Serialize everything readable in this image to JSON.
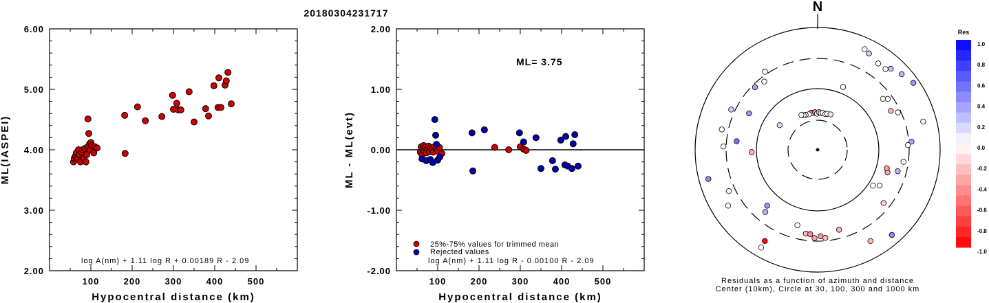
{
  "title": "20180304231717",
  "chart_data": [
    {
      "type": "scatter",
      "ylabel": "ML(IASPEI)",
      "xlabel": "Hypocentral distance (km)",
      "xlim": [
        0,
        600
      ],
      "ylim": [
        2.0,
        6.0
      ],
      "xticks": [
        "100",
        "200",
        "300",
        "400",
        "500"
      ],
      "yticks": [
        "2.00",
        "3.00",
        "4.00",
        "5.00",
        "6.00"
      ],
      "formula": "log A(nm) + 1.11 log R + 0.00189 R - 2.09",
      "series": [
        {
          "color": "#cc0000",
          "points": [
            [
              58,
              3.8
            ],
            [
              60,
              3.86
            ],
            [
              63,
              3.9
            ],
            [
              65,
              3.95
            ],
            [
              68,
              3.85
            ],
            [
              70,
              4.0
            ],
            [
              72,
              3.92
            ],
            [
              75,
              3.8
            ],
            [
              78,
              3.96
            ],
            [
              80,
              4.0
            ],
            [
              83,
              3.86
            ],
            [
              85,
              4.02
            ],
            [
              88,
              3.8
            ],
            [
              90,
              3.92
            ],
            [
              92,
              4.05
            ],
            [
              93,
              4.51
            ],
            [
              95,
              4.27
            ],
            [
              97,
              4.1
            ],
            [
              98,
              4.0
            ],
            [
              100,
              4.12
            ],
            [
              103,
              4.07
            ],
            [
              107,
              3.95
            ],
            [
              110,
              4.05
            ],
            [
              115,
              4.03
            ],
            [
              182,
              4.57
            ],
            [
              183,
              3.94
            ],
            [
              213,
              4.71
            ],
            [
              232,
              4.48
            ],
            [
              272,
              4.55
            ],
            [
              298,
              4.9
            ],
            [
              300,
              4.67
            ],
            [
              308,
              4.77
            ],
            [
              312,
              4.66
            ],
            [
              318,
              4.66
            ],
            [
              338,
              4.96
            ],
            [
              350,
              4.46
            ],
            [
              378,
              4.68
            ],
            [
              385,
              4.56
            ],
            [
              398,
              5.06
            ],
            [
              408,
              4.7
            ],
            [
              410,
              5.19
            ],
            [
              415,
              4.7
            ],
            [
              425,
              5.07
            ],
            [
              428,
              5.14
            ],
            [
              432,
              5.28
            ],
            [
              440,
              4.76
            ]
          ]
        }
      ]
    },
    {
      "type": "scatter",
      "ylabel": "ML - ML(evt)",
      "xlabel": "Hypocentral distance (km)",
      "xlim": [
        0,
        600
      ],
      "ylim": [
        -2.0,
        2.0
      ],
      "xticks": [
        "100",
        "200",
        "300",
        "400",
        "500"
      ],
      "yticks": [
        "-2.00",
        "-1.00",
        "0.00",
        "1.00",
        "2.00"
      ],
      "annotation": "ML= 3.75",
      "formula": "log A(nm) + 1.11 log R - 0.00100 R - 2.09",
      "series": [
        {
          "name": "25%-75% values for trimmed mean",
          "color": "#cc0000",
          "points": [
            [
              58,
              -0.04
            ],
            [
              60,
              0.05
            ],
            [
              62,
              -0.08
            ],
            [
              64,
              0.0
            ],
            [
              66,
              0.07
            ],
            [
              68,
              -0.02
            ],
            [
              70,
              0.04
            ],
            [
              73,
              -0.05
            ],
            [
              76,
              0.02
            ],
            [
              78,
              0.06
            ],
            [
              80,
              -0.03
            ],
            [
              83,
              0.03
            ],
            [
              86,
              0.0
            ],
            [
              89,
              -0.04
            ],
            [
              92,
              0.05
            ],
            [
              96,
              0.02
            ],
            [
              100,
              -0.02
            ],
            [
              104,
              0.04
            ],
            [
              110,
              -0.06
            ],
            [
              238,
              0.04
            ],
            [
              272,
              0.0
            ],
            [
              300,
              0.05
            ],
            [
              308,
              0.01
            ],
            [
              314,
              -0.01
            ]
          ]
        },
        {
          "name": "Rejected values",
          "color": "#0000aa",
          "points": [
            [
              62,
              -0.15
            ],
            [
              72,
              -0.18
            ],
            [
              82,
              -0.16
            ],
            [
              88,
              -0.21
            ],
            [
              93,
              0.5
            ],
            [
              95,
              0.24
            ],
            [
              97,
              0.09
            ],
            [
              100,
              -0.17
            ],
            [
              105,
              -0.12
            ],
            [
              183,
              0.28
            ],
            [
              185,
              -0.35
            ],
            [
              213,
              0.33
            ],
            [
              298,
              0.28
            ],
            [
              308,
              0.13
            ],
            [
              338,
              0.2
            ],
            [
              350,
              -0.31
            ],
            [
              378,
              -0.18
            ],
            [
              385,
              -0.32
            ],
            [
              398,
              0.16
            ],
            [
              408,
              -0.25
            ],
            [
              410,
              0.22
            ],
            [
              415,
              -0.27
            ],
            [
              425,
              -0.31
            ],
            [
              428,
              0.1
            ],
            [
              432,
              0.25
            ],
            [
              440,
              -0.27
            ]
          ]
        }
      ]
    }
  ],
  "polar": {
    "north_label": "N",
    "caption_line1": "Residuals as a function of azimuth and distance",
    "caption_line2": "Center (10km), Circle at 30, 100, 300 and 1000 km",
    "points": [
      [
        -10,
        200,
        -0.3
      ],
      [
        -7,
        196,
        -0.25
      ],
      [
        -4,
        200,
        -0.45
      ],
      [
        -1,
        192,
        0.05
      ],
      [
        2,
        200,
        -0.2
      ],
      [
        5,
        196,
        -0.1
      ],
      [
        8,
        198,
        0.0
      ],
      [
        12,
        194,
        0.05
      ],
      [
        15,
        198,
        0.0
      ],
      [
        -14,
        194,
        0.0
      ],
      [
        -19,
        196,
        0.0
      ],
      [
        -22,
        198,
        0.0
      ],
      [
        -25,
        204,
        0.0
      ],
      [
        20,
        200,
        -0.1
      ],
      [
        22,
        360,
        0.0
      ],
      [
        -34,
        500,
        0.0
      ],
      [
        -38,
        460,
        0.0
      ],
      [
        -45,
        470,
        0.35
      ],
      [
        -57,
        240,
        0.15
      ],
      [
        -62,
        412,
        0.4
      ],
      [
        -65,
        506,
        0.2
      ],
      [
        -78,
        520,
        0.0
      ],
      [
        -84,
        432,
        0.55
      ],
      [
        -88,
        500,
        0.0
      ],
      [
        -105,
        600,
        0.45
      ],
      [
        -115,
        520,
        0.0
      ],
      [
        -122,
        560,
        0.0
      ],
      [
        -138,
        400,
        0.4
      ],
      [
        -140,
        432,
        0.3
      ],
      [
        -150,
        560,
        -1.0
      ],
      [
        -165,
        415,
        0.0
      ],
      [
        -172,
        450,
        -0.3
      ],
      [
        -175,
        450,
        -0.45
      ],
      [
        -178,
        470,
        -0.35
      ],
      [
        -182,
        460,
        -0.4
      ],
      [
        -185,
        470,
        -0.25
      ],
      [
        -195,
        440,
        -0.3
      ],
      [
        -210,
        560,
        -0.3
      ],
      [
        -221,
        600,
        0.45
      ],
      [
        -231,
        450,
        -0.2
      ],
      [
        -237,
        350,
        0.0
      ],
      [
        -240,
        380,
        0.0
      ],
      [
        -255,
        440,
        0.3
      ],
      [
        -252,
        390,
        -0.35
      ],
      [
        -255,
        380,
        -0.4
      ],
      [
        -262,
        460,
        0.0
      ],
      [
        -273,
        480,
        0.0
      ],
      [
        -275,
        500,
        0.35
      ],
      [
        -285,
        580,
        0.0
      ],
      [
        -295,
        470,
        0.0
      ],
      [
        -298,
        440,
        -0.3
      ],
      [
        -306,
        460,
        0.0
      ],
      [
        -308,
        440,
        0.0
      ],
      [
        -320,
        560,
        0.0
      ],
      [
        -335,
        590,
        0.0
      ],
      [
        -318,
        580,
        0.25
      ],
      [
        -332,
        580,
        0.2
      ],
      [
        -325,
        560,
        0.0
      ],
      [
        -312,
        600,
        0.3
      ],
      [
        -305,
        620,
        0.4
      ],
      [
        -92,
        350,
        -0.3
      ],
      [
        -150,
        600,
        0.0
      ]
    ]
  },
  "colorbar": {
    "title": "Res",
    "labels": [
      "1.0",
      "0.8",
      "0.6",
      "0.4",
      "0.2",
      "0.0",
      "-0.2",
      "-0.4",
      "-0.6",
      "-0.8",
      "-1.0"
    ]
  }
}
